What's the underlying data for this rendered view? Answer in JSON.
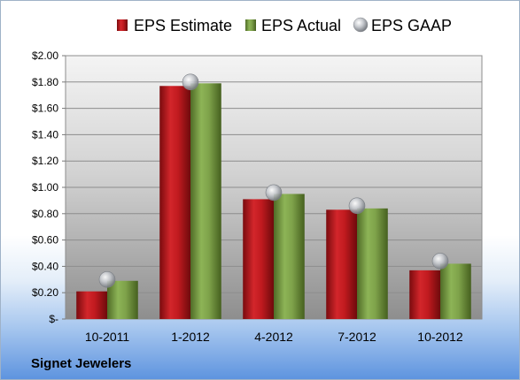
{
  "footer": {
    "company": "Signet Jewelers"
  },
  "colors": {
    "estimate": "#c0181c",
    "actual": "#7ea24a",
    "gaap": "#a8acb2"
  },
  "chart_data": {
    "type": "bar",
    "categories": [
      "10-2011",
      "1-2012",
      "4-2012",
      "7-2012",
      "10-2012"
    ],
    "series": [
      {
        "name": "EPS Estimate",
        "kind": "bar",
        "values": [
          0.21,
          1.77,
          0.91,
          0.83,
          0.37
        ]
      },
      {
        "name": "EPS Actual",
        "kind": "bar",
        "values": [
          0.29,
          1.79,
          0.95,
          0.84,
          0.42
        ]
      },
      {
        "name": "EPS GAAP",
        "kind": "marker",
        "values": [
          0.3,
          1.8,
          0.96,
          0.86,
          0.44
        ]
      }
    ],
    "yticks": [
      "$-",
      "$0.20",
      "$0.40",
      "$0.60",
      "$0.80",
      "$1.00",
      "$1.20",
      "$1.40",
      "$1.60",
      "$1.80",
      "$2.00"
    ],
    "ylim": [
      0,
      2.0
    ],
    "grid": true,
    "legend_position": "top"
  }
}
